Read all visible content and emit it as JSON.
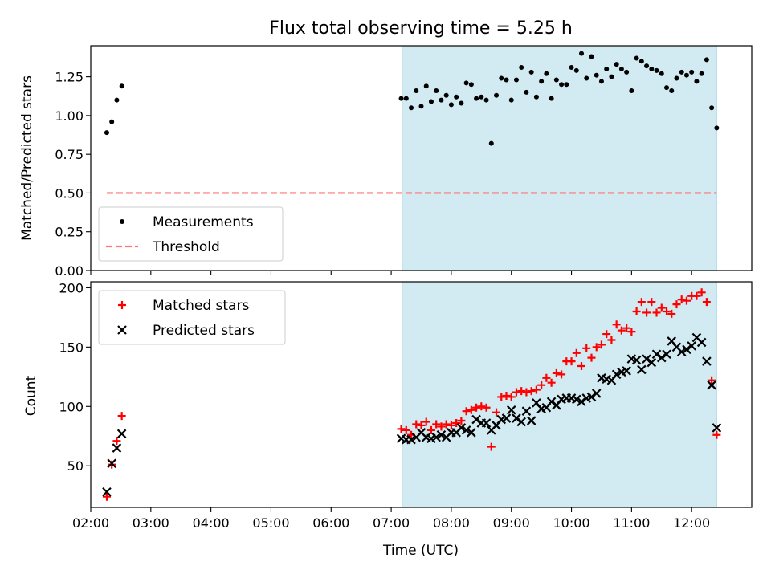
{
  "chart_data": [
    {
      "type": "scatter",
      "title": "Flux total observing time = 5.25 h",
      "ylabel": "Matched/Predicted stars",
      "xlabel": "",
      "xlim": [
        "02:00",
        "13:00"
      ],
      "ylim": [
        0,
        1.45
      ],
      "yticks": [
        0.0,
        0.25,
        0.5,
        0.75,
        1.0,
        1.25
      ],
      "ytick_labels": [
        "0.00",
        "0.25",
        "0.50",
        "0.75",
        "1.00",
        "1.25"
      ],
      "shaded_interval": [
        "07:11",
        "12:25"
      ],
      "shade_color": "#add8e6",
      "legend_position": "lower-left",
      "legend": [
        "Measurements",
        "Threshold"
      ],
      "series": [
        {
          "name": "Measurements",
          "marker": "dot",
          "color": "#000000",
          "points": [
            [
              "02:16",
              0.89
            ],
            [
              "02:21",
              0.96
            ],
            [
              "02:26",
              1.1
            ],
            [
              "02:31",
              1.19
            ],
            [
              "07:10",
              1.11
            ],
            [
              "07:15",
              1.11
            ],
            [
              "07:20",
              1.05
            ],
            [
              "07:25",
              1.16
            ],
            [
              "07:30",
              1.06
            ],
            [
              "07:35",
              1.19
            ],
            [
              "07:40",
              1.09
            ],
            [
              "07:45",
              1.16
            ],
            [
              "07:50",
              1.1
            ],
            [
              "07:55",
              1.13
            ],
            [
              "08:00",
              1.07
            ],
            [
              "08:05",
              1.12
            ],
            [
              "08:10",
              1.08
            ],
            [
              "08:15",
              1.21
            ],
            [
              "08:20",
              1.2
            ],
            [
              "08:25",
              1.11
            ],
            [
              "08:30",
              1.12
            ],
            [
              "08:35",
              1.1
            ],
            [
              "08:40",
              0.82
            ],
            [
              "08:45",
              1.13
            ],
            [
              "08:50",
              1.24
            ],
            [
              "08:55",
              1.23
            ],
            [
              "09:00",
              1.1
            ],
            [
              "09:05",
              1.23
            ],
            [
              "09:10",
              1.31
            ],
            [
              "09:15",
              1.15
            ],
            [
              "09:20",
              1.28
            ],
            [
              "09:25",
              1.12
            ],
            [
              "09:30",
              1.22
            ],
            [
              "09:35",
              1.27
            ],
            [
              "09:40",
              1.11
            ],
            [
              "09:45",
              1.23
            ],
            [
              "09:50",
              1.2
            ],
            [
              "09:55",
              1.2
            ],
            [
              "10:00",
              1.31
            ],
            [
              "10:05",
              1.29
            ],
            [
              "10:10",
              1.4
            ],
            [
              "10:15",
              1.24
            ],
            [
              "10:20",
              1.38
            ],
            [
              "10:25",
              1.26
            ],
            [
              "10:30",
              1.22
            ],
            [
              "10:35",
              1.3
            ],
            [
              "10:40",
              1.25
            ],
            [
              "10:45",
              1.33
            ],
            [
              "10:50",
              1.3
            ],
            [
              "10:55",
              1.28
            ],
            [
              "11:00",
              1.16
            ],
            [
              "11:05",
              1.37
            ],
            [
              "11:10",
              1.35
            ],
            [
              "11:15",
              1.32
            ],
            [
              "11:20",
              1.3
            ],
            [
              "11:25",
              1.29
            ],
            [
              "11:30",
              1.27
            ],
            [
              "11:35",
              1.18
            ],
            [
              "11:40",
              1.16
            ],
            [
              "11:45",
              1.24
            ],
            [
              "11:50",
              1.28
            ],
            [
              "11:55",
              1.26
            ],
            [
              "12:00",
              1.28
            ],
            [
              "12:05",
              1.22
            ],
            [
              "12:10",
              1.27
            ],
            [
              "12:15",
              1.36
            ],
            [
              "12:20",
              1.05
            ],
            [
              "12:25",
              0.92
            ]
          ]
        },
        {
          "name": "Threshold",
          "style": "dashed",
          "color": "#ff7777",
          "points": [
            [
              "02:16",
              0.5
            ],
            [
              "12:25",
              0.5
            ]
          ]
        }
      ]
    },
    {
      "type": "scatter",
      "title": "",
      "xlabel": "Time (UTC)",
      "ylabel": "Count",
      "xlim": [
        "02:00",
        "13:00"
      ],
      "ylim": [
        15,
        205
      ],
      "yticks": [
        50,
        100,
        150,
        200
      ],
      "ytick_labels": [
        "50",
        "100",
        "150",
        "200"
      ],
      "xticks": [
        "02:00",
        "03:00",
        "04:00",
        "05:00",
        "06:00",
        "07:00",
        "08:00",
        "09:00",
        "10:00",
        "11:00",
        "12:00"
      ],
      "xtick_labels": [
        "02:00",
        "03:00",
        "04:00",
        "05:00",
        "06:00",
        "07:00",
        "08:00",
        "09:00",
        "10:00",
        "11:00",
        "12:00"
      ],
      "shaded_interval": [
        "07:11",
        "12:25"
      ],
      "shade_color": "#add8e6",
      "legend_position": "upper-left",
      "legend": [
        "Matched stars",
        "Predicted stars"
      ],
      "series": [
        {
          "name": "Matched stars",
          "marker": "plus",
          "color": "#ff0000",
          "points": [
            [
              "02:16",
              24
            ],
            [
              "02:21",
              51
            ],
            [
              "02:26",
              71
            ],
            [
              "02:31",
              92
            ],
            [
              "07:10",
              81
            ],
            [
              "07:15",
              80
            ],
            [
              "07:20",
              76
            ],
            [
              "07:25",
              85
            ],
            [
              "07:30",
              84
            ],
            [
              "07:35",
              87
            ],
            [
              "07:40",
              80
            ],
            [
              "07:45",
              85
            ],
            [
              "07:50",
              83
            ],
            [
              "07:55",
              85
            ],
            [
              "08:00",
              84
            ],
            [
              "08:05",
              86
            ],
            [
              "08:10",
              88
            ],
            [
              "08:15",
              96
            ],
            [
              "08:20",
              97
            ],
            [
              "08:25",
              99
            ],
            [
              "08:30",
              100
            ],
            [
              "08:35",
              99
            ],
            [
              "08:40",
              66
            ],
            [
              "08:45",
              95
            ],
            [
              "08:50",
              108
            ],
            [
              "08:55",
              109
            ],
            [
              "09:00",
              108
            ],
            [
              "09:05",
              112
            ],
            [
              "09:10",
              113
            ],
            [
              "09:15",
              112
            ],
            [
              "09:20",
              113
            ],
            [
              "09:25",
              114
            ],
            [
              "09:30",
              118
            ],
            [
              "09:35",
              124
            ],
            [
              "09:40",
              120
            ],
            [
              "09:45",
              128
            ],
            [
              "09:50",
              127
            ],
            [
              "09:55",
              138
            ],
            [
              "10:00",
              138
            ],
            [
              "10:05",
              145
            ],
            [
              "10:10",
              134
            ],
            [
              "10:15",
              149
            ],
            [
              "10:20",
              141
            ],
            [
              "10:25",
              150
            ],
            [
              "10:30",
              152
            ],
            [
              "10:35",
              161
            ],
            [
              "10:40",
              156
            ],
            [
              "10:45",
              169
            ],
            [
              "10:50",
              164
            ],
            [
              "10:55",
              166
            ],
            [
              "11:00",
              163
            ],
            [
              "11:05",
              180
            ],
            [
              "11:10",
              188
            ],
            [
              "11:15",
              179
            ],
            [
              "11:20",
              188
            ],
            [
              "11:25",
              179
            ],
            [
              "11:30",
              183
            ],
            [
              "11:35",
              180
            ],
            [
              "11:40",
              178
            ],
            [
              "11:45",
              186
            ],
            [
              "11:50",
              190
            ],
            [
              "11:55",
              189
            ],
            [
              "12:00",
              193
            ],
            [
              "12:05",
              193
            ],
            [
              "12:10",
              196
            ],
            [
              "12:15",
              188
            ],
            [
              "12:20",
              122
            ],
            [
              "12:25",
              76
            ]
          ]
        },
        {
          "name": "Predicted stars",
          "marker": "x",
          "color": "#000000",
          "points": [
            [
              "02:16",
              28
            ],
            [
              "02:21",
              52
            ],
            [
              "02:26",
              65
            ],
            [
              "02:31",
              77
            ],
            [
              "07:10",
              73
            ],
            [
              "07:15",
              72
            ],
            [
              "07:20",
              72
            ],
            [
              "07:25",
              74
            ],
            [
              "07:30",
              78
            ],
            [
              "07:35",
              74
            ],
            [
              "07:40",
              73
            ],
            [
              "07:45",
              74
            ],
            [
              "07:50",
              76
            ],
            [
              "07:55",
              74
            ],
            [
              "08:00",
              78
            ],
            [
              "08:05",
              78
            ],
            [
              "08:10",
              82
            ],
            [
              "08:15",
              80
            ],
            [
              "08:20",
              78
            ],
            [
              "08:25",
              89
            ],
            [
              "08:30",
              86
            ],
            [
              "08:35",
              86
            ],
            [
              "08:40",
              80
            ],
            [
              "08:45",
              84
            ],
            [
              "08:50",
              89
            ],
            [
              "08:55",
              90
            ],
            [
              "09:00",
              97
            ],
            [
              "09:05",
              90
            ],
            [
              "09:10",
              87
            ],
            [
              "09:15",
              96
            ],
            [
              "09:20",
              88
            ],
            [
              "09:25",
              103
            ],
            [
              "09:30",
              98
            ],
            [
              "09:35",
              99
            ],
            [
              "09:40",
              104
            ],
            [
              "09:45",
              101
            ],
            [
              "09:50",
              106
            ],
            [
              "09:55",
              107
            ],
            [
              "10:00",
              107
            ],
            [
              "10:05",
              106
            ],
            [
              "10:10",
              104
            ],
            [
              "10:15",
              107
            ],
            [
              "10:20",
              108
            ],
            [
              "10:25",
              111
            ],
            [
              "10:30",
              124
            ],
            [
              "10:35",
              123
            ],
            [
              "10:40",
              122
            ],
            [
              "10:45",
              127
            ],
            [
              "10:50",
              129
            ],
            [
              "10:55",
              130
            ],
            [
              "11:00",
              140
            ],
            [
              "11:05",
              139
            ],
            [
              "11:10",
              131
            ],
            [
              "11:15",
              140
            ],
            [
              "11:20",
              137
            ],
            [
              "11:25",
              144
            ],
            [
              "11:30",
              141
            ],
            [
              "11:35",
              144
            ],
            [
              "11:40",
              155
            ],
            [
              "11:45",
              150
            ],
            [
              "11:50",
              146
            ],
            [
              "11:55",
              148
            ],
            [
              "12:00",
              151
            ],
            [
              "12:05",
              158
            ],
            [
              "12:10",
              154
            ],
            [
              "12:15",
              138
            ],
            [
              "12:20",
              118
            ],
            [
              "12:25",
              82
            ]
          ]
        }
      ]
    }
  ]
}
